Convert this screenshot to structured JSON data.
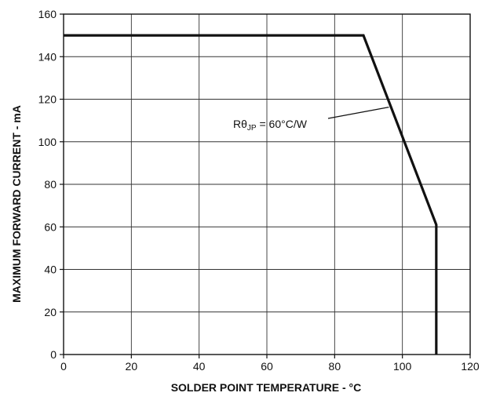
{
  "chart_data": {
    "type": "line",
    "xlabel": "SOLDER POINT TEMPERATURE - °C",
    "ylabel": "MAXIMUM FORWARD CURRENT - mA",
    "xlim": [
      0,
      120
    ],
    "ylim": [
      0,
      160
    ],
    "x_ticks": [
      0,
      20,
      40,
      60,
      80,
      100,
      120
    ],
    "y_ticks": [
      0,
      20,
      40,
      60,
      80,
      100,
      120,
      140,
      160
    ],
    "x_tick_labels": [
      "0",
      "20",
      "40",
      "60",
      "80",
      "100",
      "120"
    ],
    "y_tick_labels": [
      "0",
      "20",
      "40",
      "60",
      "80",
      "100",
      "120",
      "140",
      "160"
    ],
    "grid": true,
    "series": [
      {
        "x": [
          0,
          88.5,
          110,
          110
        ],
        "y": [
          150,
          150,
          61,
          0
        ]
      }
    ],
    "annotations": [
      {
        "text_main": "Rθ",
        "text_sub": "JP",
        "text_rest": " = 60°C/W",
        "x": 96,
        "y": 117
      }
    ]
  }
}
